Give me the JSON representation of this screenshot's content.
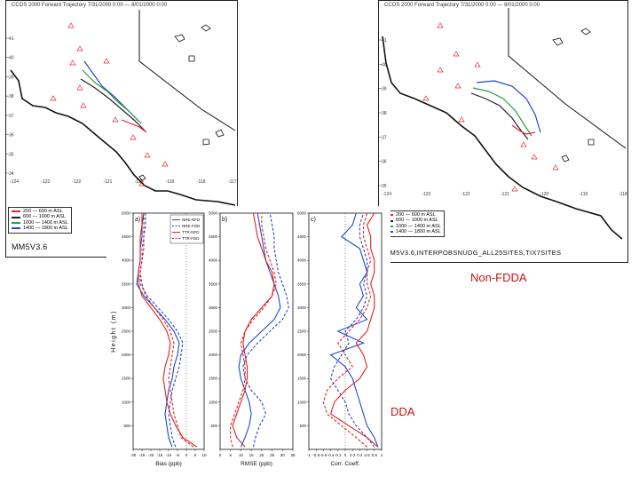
{
  "maps": {
    "left": {
      "title": "CCOS 2000 Forward Trajectory 7/31/2000 0:00 — 8/01/2000 0:00",
      "footer": "MM5V3.6",
      "lat_ticks": [
        "41",
        "40",
        "39",
        "38",
        "37",
        "36",
        "35",
        "34"
      ],
      "lon_ticks": [
        "-124",
        "-123",
        "-122",
        "-121",
        "-120",
        "-119",
        "-118",
        "-117"
      ],
      "legend": [
        {
          "label": "200 — 600 m ASL",
          "color": "#e8203a"
        },
        {
          "label": "600 — 1000 m ASL",
          "color": "#222222"
        },
        {
          "label": "1000 — 1400 m ASL",
          "color": "#22a040"
        },
        {
          "label": "1400 — 1800 m ASL",
          "color": "#1f49c9"
        }
      ]
    },
    "right": {
      "title": "CCOS 2000 Forward Trajectory 7/31/2000 0:00 — 8/01/2000 0:00",
      "footer": "MM5V3.6,INTERPOBSNUDG_ALL25SITES,TIX7SITES",
      "lat_ticks": [
        "41",
        "40",
        "39",
        "38",
        "37",
        "36",
        "35"
      ],
      "lon_ticks": [
        "-124",
        "-123",
        "-122",
        "-121",
        "-120",
        "-119",
        "-118"
      ],
      "legend": [
        {
          "label": "200 — 600 m ASL",
          "color": "#e8203a"
        },
        {
          "label": "600 — 1000 m ASL",
          "color": "#222222"
        },
        {
          "label": "1000 — 1400 m ASL",
          "color": "#22a040"
        },
        {
          "label": "1400 — 1800 m ASL",
          "color": "#1f49c9"
        }
      ]
    }
  },
  "labels": {
    "non_fdda": "Non-FDDA",
    "fdda": "FDDA",
    "non_fdda_color": "#cc1111",
    "fdda_color": "#cc1111"
  },
  "chart_data": [
    {
      "type": "line",
      "panel": "a)",
      "xlabel": "Bias (ppb)",
      "ylabel": "Height (m)",
      "xlim": [
        -30,
        10
      ],
      "ylim": [
        0,
        5000
      ],
      "x_ticks": [
        "-30",
        "-25",
        "-20",
        "-15",
        "-10",
        "-5",
        "0",
        "5",
        "10"
      ],
      "y_ticks": [
        "500",
        "1000",
        "1500",
        "2000",
        "2500",
        "3000",
        "3500",
        "4000",
        "4500",
        "5000"
      ],
      "legend": [
        {
          "name": "NRE-NFD",
          "color": "#1f49c9",
          "dash": false
        },
        {
          "name": "NRE-FDD",
          "color": "#1f49c9",
          "dash": true
        },
        {
          "name": "TTR-NFD",
          "color": "#dd2222",
          "dash": false
        },
        {
          "name": "TTR-FDD",
          "color": "#dd2222",
          "dash": true
        }
      ],
      "series": [
        {
          "name": "NRE-NFD",
          "color": "#1f49c9",
          "dash": false,
          "y": [
            50,
            250,
            500,
            750,
            1000,
            1250,
            1500,
            1750,
            2000,
            2250,
            2500,
            2750,
            3000,
            3250,
            3500,
            3750,
            4000,
            4250,
            4500,
            4750,
            5000
          ],
          "x": [
            -8,
            -10,
            -11,
            -12,
            -11,
            -10,
            -8,
            -7,
            -5,
            -4,
            -7,
            -12,
            -18,
            -24,
            -28,
            -27,
            -26,
            -26,
            -25,
            -25,
            -24
          ]
        },
        {
          "name": "NRE-FDD",
          "color": "#1f49c9",
          "dash": true,
          "y": [
            50,
            250,
            500,
            750,
            1000,
            1250,
            1500,
            1750,
            2000,
            2250,
            2500,
            2750,
            3000,
            3250,
            3500,
            3750,
            4000,
            4250,
            4500,
            4750,
            5000
          ],
          "x": [
            -6,
            -8,
            -9,
            -10,
            -9,
            -8,
            -6,
            -4,
            -3,
            -2,
            -5,
            -10,
            -16,
            -22,
            -26,
            -26,
            -25,
            -24,
            -24,
            -23,
            -23
          ]
        },
        {
          "name": "TTR-NFD",
          "color": "#dd2222",
          "dash": false,
          "y": [
            50,
            250,
            500,
            750,
            1000,
            1250,
            1500,
            1750,
            2000,
            2250,
            2500,
            2750,
            3000,
            3250,
            3500,
            3750,
            4000,
            4250,
            4500,
            4750,
            5000
          ],
          "x": [
            6,
            -2,
            -6,
            -9,
            -11,
            -12,
            -13,
            -12,
            -10,
            -9,
            -11,
            -15,
            -20,
            -25,
            -27,
            -27,
            -26,
            -26,
            -26,
            -25,
            -25
          ]
        },
        {
          "name": "TTR-FDD",
          "color": "#dd2222",
          "dash": true,
          "y": [
            50,
            250,
            500,
            750,
            1000,
            1250,
            1500,
            1750,
            2000,
            2250,
            2500,
            2750,
            3000,
            3250,
            3500,
            3750,
            4000,
            4250,
            4500,
            4750,
            5000
          ],
          "x": [
            4,
            -3,
            -5,
            -7,
            -8,
            -9,
            -10,
            -9,
            -8,
            -7,
            -9,
            -13,
            -18,
            -23,
            -25,
            -26,
            -25,
            -25,
            -24,
            -24,
            -24
          ]
        }
      ]
    },
    {
      "type": "line",
      "panel": "b)",
      "xlabel": "RMSE (ppb)",
      "xlim": [
        0,
        35
      ],
      "ylim": [
        0,
        5000
      ],
      "x_ticks": [
        "0",
        "5",
        "10",
        "15",
        "20",
        "25",
        "30",
        "35"
      ],
      "series": [
        {
          "name": "NRE-NFD",
          "color": "#1f49c9",
          "dash": false,
          "y": [
            50,
            250,
            500,
            750,
            1000,
            1250,
            1500,
            1750,
            2000,
            2250,
            2500,
            2750,
            3000,
            3250,
            3500,
            3750,
            4000,
            4250,
            4500,
            4750,
            5000
          ],
          "x": [
            10,
            12,
            14,
            15,
            14,
            12,
            10,
            9,
            10,
            14,
            20,
            26,
            29,
            28,
            26,
            24,
            22,
            21,
            20,
            19,
            18
          ]
        },
        {
          "name": "NRE-FDD",
          "color": "#1f49c9",
          "dash": true,
          "y": [
            50,
            250,
            500,
            750,
            1000,
            1250,
            1500,
            1750,
            2000,
            2250,
            2500,
            2750,
            3000,
            3250,
            3500,
            3750,
            4000,
            4250,
            4500,
            4750,
            5000
          ],
          "x": [
            16,
            17,
            19,
            22,
            20,
            15,
            12,
            11,
            13,
            18,
            24,
            30,
            33,
            32,
            30,
            28,
            27,
            26,
            26,
            25,
            24
          ]
        },
        {
          "name": "TTR-NFD",
          "color": "#dd2222",
          "dash": false,
          "y": [
            50,
            250,
            500,
            750,
            1000,
            1250,
            1500,
            1750,
            2000,
            2250,
            2500,
            2750,
            3000,
            3250,
            3500,
            3750,
            4000,
            4250,
            4500,
            4750,
            5000
          ],
          "x": [
            12,
            8,
            6,
            8,
            10,
            12,
            13,
            13,
            12,
            11,
            12,
            15,
            20,
            25,
            26,
            25,
            22,
            20,
            18,
            17,
            16
          ]
        },
        {
          "name": "TTR-FDD",
          "color": "#dd2222",
          "dash": true,
          "y": [
            50,
            250,
            500,
            750,
            1000,
            1250,
            1500,
            1750,
            2000,
            2250,
            2500,
            2750,
            3000,
            3250,
            3500,
            3750,
            4000,
            4250,
            4500,
            4750,
            5000
          ],
          "x": [
            6,
            5,
            5,
            7,
            9,
            11,
            12,
            12,
            11,
            10,
            12,
            16,
            21,
            25,
            27,
            26,
            24,
            22,
            21,
            20,
            20
          ]
        }
      ]
    },
    {
      "type": "line",
      "panel": "c)",
      "xlabel": "Corr. Coeff.",
      "xlim": [
        -1,
        1
      ],
      "ylim": [
        0,
        5000
      ],
      "x_ticks": [
        "-1",
        "-0.8",
        "-0.6",
        "-0.4",
        "-0.2",
        "0",
        "0.2",
        "0.4",
        "0.6",
        "0.8",
        "1"
      ],
      "series": [
        {
          "name": "NRE-NFD",
          "color": "#1f49c9",
          "dash": false,
          "y": [
            50,
            250,
            500,
            750,
            1000,
            1250,
            1500,
            1750,
            2000,
            2250,
            2500,
            2750,
            3000,
            3250,
            3500,
            3750,
            4000,
            4250,
            4500,
            4750,
            5000
          ],
          "x": [
            0.9,
            0.8,
            0.6,
            0.5,
            0.4,
            0.3,
            0.2,
            0.0,
            -0.4,
            0.5,
            -0.2,
            0.6,
            0.3,
            0.5,
            0.4,
            0.6,
            0.5,
            0.4,
            -0.1,
            0.2,
            0.3
          ]
        },
        {
          "name": "NRE-FDD",
          "color": "#1f49c9",
          "dash": true,
          "y": [
            50,
            250,
            500,
            750,
            1000,
            1250,
            1500,
            1750,
            2000,
            2250,
            2500,
            2750,
            3000,
            3250,
            3500,
            3750,
            4000,
            4250,
            4500,
            4750,
            5000
          ],
          "x": [
            0.8,
            0.6,
            0.3,
            0.1,
            0.0,
            -0.2,
            -0.4,
            -0.3,
            -0.1,
            0.1,
            0.0,
            0.3,
            0.5,
            0.6,
            0.5,
            0.6,
            0.6,
            0.5,
            0.4,
            0.4,
            0.5
          ]
        },
        {
          "name": "TTR-NFD",
          "color": "#dd2222",
          "dash": false,
          "y": [
            50,
            250,
            500,
            750,
            1000,
            1250,
            1500,
            1750,
            2000,
            2250,
            2500,
            2750,
            3000,
            3250,
            3500,
            3750,
            4000,
            4250,
            4500,
            4750,
            5000
          ],
          "x": [
            0.9,
            0.6,
            0.1,
            -0.4,
            -0.3,
            0.0,
            0.4,
            0.6,
            0.5,
            0.3,
            0.6,
            0.7,
            0.8,
            0.8,
            0.7,
            0.8,
            0.8,
            0.7,
            0.7,
            0.6,
            0.8
          ]
        },
        {
          "name": "TTR-FDD",
          "color": "#dd2222",
          "dash": true,
          "y": [
            50,
            250,
            500,
            750,
            1000,
            1250,
            1500,
            1750,
            2000,
            2250,
            2500,
            2750,
            3000,
            3250,
            3500,
            3750,
            4000,
            4250,
            4500,
            4750,
            5000
          ],
          "x": [
            0.6,
            0.3,
            -0.1,
            -0.5,
            -0.6,
            -0.5,
            -0.2,
            0.2,
            0.0,
            -0.2,
            0.1,
            0.4,
            0.6,
            0.7,
            0.6,
            0.6,
            0.7,
            0.6,
            0.5,
            0.5,
            0.6
          ]
        }
      ]
    }
  ]
}
